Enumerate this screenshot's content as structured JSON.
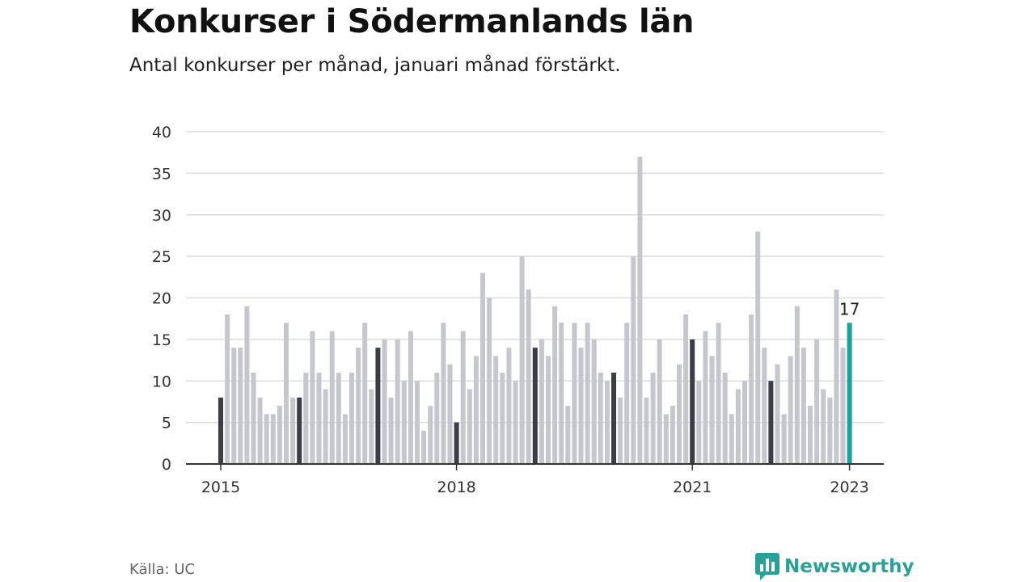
{
  "title": "Konkurser i Södermanlands län",
  "subtitle": "Antal konkurser per månad, januari månad förstärkt.",
  "source": "Källa: UC",
  "brand": {
    "name": "Newsworthy",
    "icon": "newsworthy-logo-icon"
  },
  "colors": {
    "regular": "#c6c6ce",
    "january": "#3d3d48",
    "latest": "#1aa398",
    "grid": "#dddddd",
    "axis": "#333333"
  },
  "chart_data": {
    "type": "bar",
    "title": "Konkurser i Södermanlands län",
    "xlabel": "",
    "ylabel": "",
    "ylim": [
      0,
      40
    ],
    "yticks": [
      0,
      5,
      10,
      15,
      20,
      25,
      30,
      35,
      40
    ],
    "xticks": [
      "2015",
      "2018",
      "2021",
      "2023"
    ],
    "start": "2015-01",
    "highlight": "january",
    "latest_label": "17",
    "series": [
      {
        "name": "2015",
        "values": [
          8,
          18,
          14,
          14,
          19,
          11,
          8,
          6,
          6,
          7,
          17,
          8
        ]
      },
      {
        "name": "2016",
        "values": [
          8,
          11,
          16,
          11,
          9,
          16,
          11,
          6,
          11,
          14,
          17,
          9
        ]
      },
      {
        "name": "2017",
        "values": [
          14,
          15,
          8,
          15,
          10,
          16,
          10,
          4,
          7,
          11,
          17,
          12
        ]
      },
      {
        "name": "2018",
        "values": [
          5,
          16,
          9,
          13,
          23,
          20,
          13,
          11,
          14,
          10,
          25,
          21
        ]
      },
      {
        "name": "2019",
        "values": [
          14,
          15,
          13,
          19,
          17,
          7,
          17,
          14,
          17,
          15,
          11,
          10
        ]
      },
      {
        "name": "2020",
        "values": [
          11,
          8,
          17,
          25,
          37,
          8,
          11,
          15,
          6,
          7,
          12,
          18
        ]
      },
      {
        "name": "2021",
        "values": [
          15,
          10,
          16,
          13,
          17,
          11,
          6,
          9,
          10,
          18,
          28,
          14
        ]
      },
      {
        "name": "2022",
        "values": [
          10,
          12,
          6,
          13,
          19,
          14,
          7,
          15,
          9,
          8,
          21,
          14
        ]
      },
      {
        "name": "2023",
        "values": [
          17
        ]
      }
    ]
  }
}
